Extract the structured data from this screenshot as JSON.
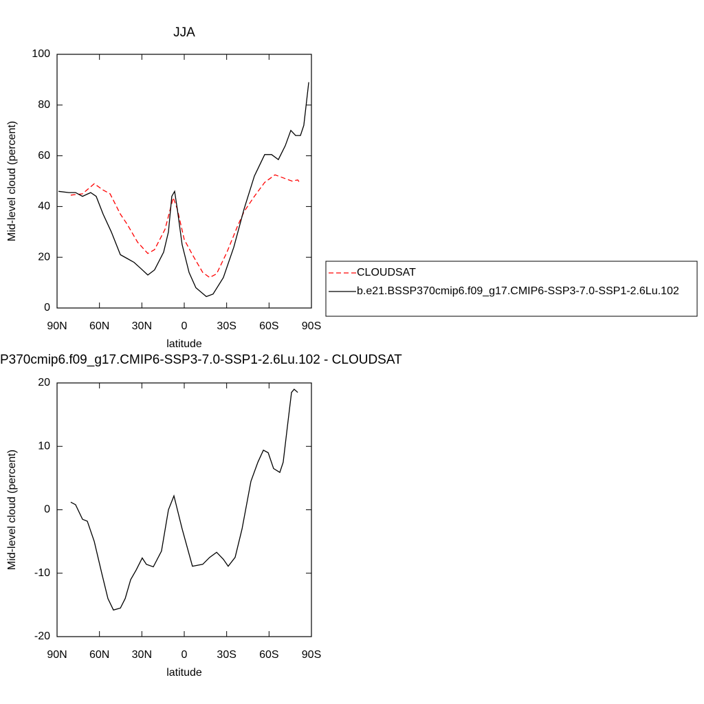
{
  "chart_data": [
    {
      "type": "line",
      "title": "JJA",
      "xlabel": "latitude",
      "ylabel": "Mid-level cloud (percent)",
      "xlim": [
        90,
        -90
      ],
      "xticks": [
        {
          "value": 90,
          "label": "90N"
        },
        {
          "value": 60,
          "label": "60N"
        },
        {
          "value": 30,
          "label": "30N"
        },
        0,
        {
          "value": -30,
          "label": "30S"
        },
        {
          "value": -60,
          "label": "60S"
        },
        {
          "value": -90,
          "label": "90S"
        }
      ],
      "ylim": [
        0,
        100
      ],
      "yticks": [
        0,
        20,
        40,
        60,
        80,
        100
      ],
      "legend": "right",
      "series": [
        {
          "name": "CLOUDSAT",
          "color": "#ff0000",
          "dashed": true,
          "x": [
            80.3,
            72,
            63.7,
            57.4,
            52.5,
            45.2,
            40.4,
            33.1,
            25.8,
            21,
            13.6,
            7.8,
            4.9,
            0,
            -5.8,
            -13.1,
            -18,
            -22.9,
            -30.2,
            -37.5,
            -42.3,
            -49.6,
            -56.9,
            -64.2,
            -71.5,
            -76.4,
            -80.3,
            -82.2
          ],
          "values": [
            44.5,
            45,
            49,
            46.5,
            45,
            37,
            33,
            26,
            21.5,
            23,
            31,
            43.5,
            39,
            27,
            21,
            14,
            12,
            13.5,
            22,
            32,
            38,
            44,
            49.5,
            52.5,
            51,
            50,
            50.5,
            49
          ]
        },
        {
          "name": "b.e21.BSSP370cmip6.f09_g17.CMIP6-SSP3-7.0-SSP1-2.6Lu.102",
          "color": "#000000",
          "dashed": false,
          "x": [
            89,
            81.7,
            76.9,
            72,
            66.2,
            62.3,
            57.4,
            51.6,
            45.2,
            40.4,
            35.5,
            30.6,
            25.8,
            21,
            14.6,
            11.2,
            8.8,
            6.8,
            4.9,
            1.5,
            -3.4,
            -8.2,
            -15.6,
            -20.4,
            -27.7,
            -35.1,
            -42.3,
            -49.6,
            -56.9,
            -61.8,
            -66.6,
            -71.5,
            -75.4,
            -78.8,
            -82.2,
            -84.6,
            -88.1
          ],
          "values": [
            46,
            45.5,
            45.5,
            44,
            45.5,
            44,
            37,
            30,
            21,
            19.5,
            18,
            15.5,
            13,
            15,
            22,
            30,
            44,
            46,
            39,
            25,
            14,
            8,
            4.5,
            5.5,
            12,
            24,
            39,
            52,
            60.5,
            60.5,
            58.5,
            64,
            70,
            68,
            68,
            72,
            89
          ]
        }
      ]
    },
    {
      "type": "line",
      "title": "P370cmip6.f09_g17.CMIP6-SSP3-7.0-SSP1-2.6Lu.102 - CLOUDSAT",
      "xlabel": "latitude",
      "ylabel": "Mid-level cloud (percent)",
      "xlim": [
        90,
        -90
      ],
      "xticks": [
        {
          "value": 90,
          "label": "90N"
        },
        {
          "value": 60,
          "label": "60N"
        },
        {
          "value": 30,
          "label": "30N"
        },
        0,
        {
          "value": -30,
          "label": "30S"
        },
        {
          "value": -60,
          "label": "60S"
        },
        {
          "value": -90,
          "label": "90S"
        }
      ],
      "ylim": [
        -20,
        20
      ],
      "yticks": [
        -20,
        -10,
        0,
        10,
        20
      ],
      "series": [
        {
          "color": "#000000",
          "dashed": false,
          "x": [
            80.3,
            76.9,
            72,
            68.6,
            63.7,
            58.4,
            54,
            50.1,
            45.2,
            41.8,
            37.9,
            34,
            29.7,
            26.8,
            21.9,
            16.1,
            11.2,
            7.3,
            1.5,
            -5.8,
            -13.1,
            -18,
            -22.9,
            -27.7,
            -31.1,
            -36,
            -40.9,
            -47.2,
            -52.1,
            -56,
            -59.4,
            -63.2,
            -67.6,
            -70,
            -72.9,
            -75.9,
            -77.8,
            -80.3
          ],
          "values": [
            1.2,
            0.8,
            -1.5,
            -1.8,
            -5,
            -10,
            -14,
            -15.8,
            -15.5,
            -14,
            -11,
            -9.5,
            -7.6,
            -8.6,
            -9,
            -6.5,
            0,
            2.2,
            -3,
            -8.9,
            -8.6,
            -7.5,
            -6.7,
            -7.8,
            -8.9,
            -7.5,
            -3,
            4.5,
            7.5,
            9.4,
            9,
            6.5,
            5.9,
            7.5,
            13,
            18.5,
            19,
            18.5
          ]
        }
      ]
    }
  ]
}
